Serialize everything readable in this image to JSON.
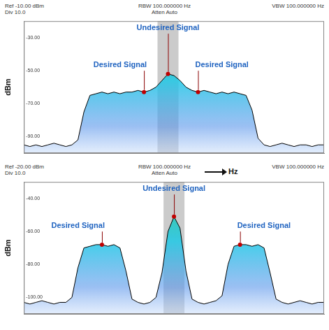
{
  "chart_data": [
    {
      "type": "line",
      "header": {
        "ref": "Ref -10.00 dBm",
        "div": "Div 10.0",
        "rbw": "RBW 100.000000 Hz",
        "atten": "Atten Auto",
        "vbw": "VBW 100.000000 Hz"
      },
      "y_label": "dBm",
      "x": [
        0,
        2,
        4,
        6,
        8,
        10,
        12,
        14,
        16,
        18,
        20,
        22,
        24,
        26,
        28,
        30,
        32,
        34,
        36,
        38,
        40,
        42,
        44,
        46,
        48,
        50,
        52,
        54,
        56,
        58,
        60,
        62,
        64,
        66,
        68,
        70,
        72,
        74,
        76,
        78,
        80,
        82,
        84,
        86,
        88,
        90,
        92,
        94,
        96,
        98,
        100
      ],
      "values": [
        -95,
        -96,
        -95,
        -96,
        -95,
        -94,
        -95,
        -96,
        -95,
        -92,
        -75,
        -65,
        -64,
        -63,
        -64,
        -63,
        -64,
        -63,
        -63,
        -62,
        -63,
        -62,
        -60,
        -56,
        -52,
        -53,
        -56,
        -60,
        -62,
        -63,
        -62,
        -63,
        -64,
        -63,
        -64,
        -63,
        -64,
        -65,
        -74,
        -91,
        -95,
        -96,
        -95,
        -94,
        -95,
        -96,
        -95,
        -95,
        -96,
        -95,
        -95
      ],
      "color": "#000000",
      "marker": "none",
      "line_style": "solid",
      "xlim": [
        0,
        100
      ],
      "ylim": [
        -100,
        -20
      ],
      "yticks": [
        {
          "value": -30,
          "label": "-30.00"
        },
        {
          "value": -50,
          "label": "-50.00"
        },
        {
          "value": -70,
          "label": "-70.00"
        },
        {
          "value": -90,
          "label": "-90.00"
        }
      ],
      "grid": false,
      "tick_labels": "y",
      "annotations": [
        {
          "text": "Desired Signal",
          "x": 40,
          "y": -63
        },
        {
          "text": "Undesired Signal",
          "x": 48,
          "y": -52
        },
        {
          "text": "Desired Signal",
          "x": 58,
          "y": -63
        }
      ]
    },
    {
      "type": "line",
      "header": {
        "ref": "Ref -20.00 dBm",
        "div": "Div 10.0",
        "rbw": "RBW 100.000000 Hz",
        "atten": "Atten Auto",
        "vbw": "VBW 100.000000 Hz"
      },
      "y_label": "dBm",
      "x_label": "Hz",
      "x": [
        0,
        2,
        4,
        6,
        8,
        10,
        12,
        14,
        16,
        18,
        20,
        22,
        24,
        26,
        28,
        30,
        32,
        34,
        36,
        38,
        40,
        42,
        44,
        46,
        48,
        50,
        52,
        54,
        56,
        58,
        60,
        62,
        64,
        66,
        68,
        70,
        72,
        74,
        76,
        78,
        80,
        82,
        84,
        86,
        88,
        90,
        92,
        94,
        96,
        98,
        100
      ],
      "values": [
        -103,
        -104,
        -103,
        -102,
        -103,
        -104,
        -103,
        -103,
        -100,
        -82,
        -70,
        -69,
        -68,
        -68,
        -69,
        -68,
        -70,
        -84,
        -101,
        -103,
        -104,
        -103,
        -100,
        -85,
        -60,
        -51,
        -58,
        -84,
        -101,
        -103,
        -104,
        -103,
        -102,
        -99,
        -80,
        -69,
        -68,
        -68,
        -69,
        -68,
        -70,
        -85,
        -101,
        -103,
        -104,
        -103,
        -102,
        -103,
        -104,
        -103,
        -103
      ],
      "color": "#000000",
      "marker": "none",
      "line_style": "solid",
      "xlim": [
        0,
        100
      ],
      "ylim": [
        -110,
        -30
      ],
      "yticks": [
        {
          "value": -40,
          "label": "-40.00"
        },
        {
          "value": -60,
          "label": "-60.00"
        },
        {
          "value": -80,
          "label": "-80.00"
        },
        {
          "value": -100,
          "label": "-100.00"
        }
      ],
      "grid": false,
      "tick_labels": "y",
      "annotations": [
        {
          "text": "Desired Signal",
          "x": 26,
          "y": -68
        },
        {
          "text": "Undesired Signal",
          "x": 50,
          "y": -51
        },
        {
          "text": "Desired Signal",
          "x": 72,
          "y": -68
        }
      ]
    }
  ]
}
